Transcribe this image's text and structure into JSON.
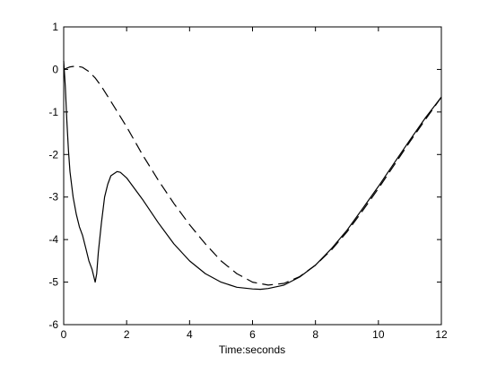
{
  "chart_data": {
    "type": "line",
    "title": "",
    "xlabel": "Time:seconds",
    "ylabel": "",
    "xlim": [
      0,
      12
    ],
    "ylim": [
      -6,
      1
    ],
    "xticks": [
      0,
      2,
      4,
      6,
      8,
      10,
      12
    ],
    "yticks": [
      1,
      0,
      -1,
      -2,
      -3,
      -4,
      -5,
      -6
    ],
    "grid": false,
    "legend": "none",
    "series": [
      {
        "style": "solid",
        "color": "#000000",
        "x": [
          0,
          0.05,
          0.1,
          0.15,
          0.2,
          0.3,
          0.4,
          0.5,
          0.6,
          0.7,
          0.8,
          0.9,
          1.0,
          1.05,
          1.1,
          1.2,
          1.3,
          1.4,
          1.5,
          1.6,
          1.7,
          1.8,
          2,
          2.5,
          3,
          3.5,
          4,
          4.5,
          5,
          5.5,
          6,
          6.25,
          6.5,
          7,
          7.5,
          8,
          8.5,
          9,
          9.5,
          10,
          10.5,
          11,
          11.5,
          12
        ],
        "y": [
          0.2,
          -0.4,
          -1.2,
          -1.9,
          -2.4,
          -3.0,
          -3.4,
          -3.7,
          -3.9,
          -4.2,
          -4.5,
          -4.7,
          -5.0,
          -4.8,
          -4.3,
          -3.6,
          -3.0,
          -2.7,
          -2.5,
          -2.45,
          -2.4,
          -2.42,
          -2.55,
          -3.05,
          -3.6,
          -4.1,
          -4.5,
          -4.8,
          -5.0,
          -5.12,
          -5.16,
          -5.17,
          -5.15,
          -5.07,
          -4.88,
          -4.6,
          -4.22,
          -3.78,
          -3.27,
          -2.75,
          -2.2,
          -1.66,
          -1.13,
          -0.65
        ]
      },
      {
        "style": "dashed",
        "color": "#000000",
        "x": [
          0,
          0.2,
          0.4,
          0.6,
          0.8,
          1.0,
          1.2,
          1.5,
          2,
          2.5,
          3,
          3.5,
          4,
          4.5,
          5,
          5.5,
          6,
          6.5,
          7,
          7.5,
          8,
          8.5,
          9,
          9.5,
          10,
          10.5,
          11,
          11.5,
          12
        ],
        "y": [
          0.0,
          0.06,
          0.08,
          0.05,
          -0.05,
          -0.2,
          -0.4,
          -0.75,
          -1.35,
          -2.0,
          -2.6,
          -3.15,
          -3.65,
          -4.1,
          -4.5,
          -4.8,
          -5.0,
          -5.07,
          -5.03,
          -4.87,
          -4.6,
          -4.25,
          -3.82,
          -3.32,
          -2.8,
          -2.25,
          -1.7,
          -1.17,
          -0.65
        ]
      }
    ]
  }
}
